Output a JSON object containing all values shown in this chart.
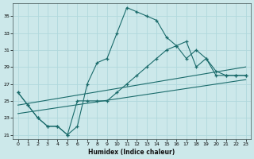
{
  "xlabel": "Humidex (Indice chaleur)",
  "bg_color": "#cce8ea",
  "grid_color": "#b0d8dc",
  "line_color": "#1a6b6b",
  "xlim": [
    -0.5,
    23.5
  ],
  "ylim": [
    20.5,
    36.5
  ],
  "xticks": [
    0,
    1,
    2,
    3,
    4,
    5,
    6,
    7,
    8,
    9,
    10,
    11,
    12,
    13,
    14,
    15,
    16,
    17,
    18,
    19,
    20,
    21,
    22,
    23
  ],
  "yticks": [
    21,
    23,
    25,
    27,
    29,
    31,
    33,
    35
  ],
  "series": [
    {
      "x": [
        0,
        1,
        2,
        3,
        4,
        5,
        6,
        7,
        8,
        9,
        10,
        11,
        12,
        13,
        14,
        15,
        16,
        17,
        18,
        19,
        20,
        21,
        22,
        23
      ],
      "y": [
        26,
        24.5,
        23,
        22,
        22,
        21,
        22,
        27,
        29.5,
        30,
        33,
        36,
        35.5,
        35,
        34.5,
        32.5,
        31.5,
        30,
        31,
        30,
        28.5,
        28,
        28,
        28
      ],
      "has_marker": true
    },
    {
      "x": [
        0,
        1,
        2,
        3,
        4,
        5,
        6,
        7,
        8,
        9,
        10,
        11,
        12,
        13,
        14,
        15,
        16,
        17,
        18,
        19,
        20,
        21,
        22,
        23
      ],
      "y": [
        26,
        24.5,
        23,
        22,
        22,
        21,
        25,
        25,
        25,
        25,
        26,
        27,
        28,
        29,
        30,
        31,
        31.5,
        32,
        29,
        30,
        28,
        28,
        28,
        28
      ],
      "has_marker": true
    },
    {
      "x": [
        0,
        23
      ],
      "y": [
        24.5,
        29
      ],
      "has_marker": false
    },
    {
      "x": [
        0,
        23
      ],
      "y": [
        23.5,
        27.5
      ],
      "has_marker": false
    }
  ]
}
